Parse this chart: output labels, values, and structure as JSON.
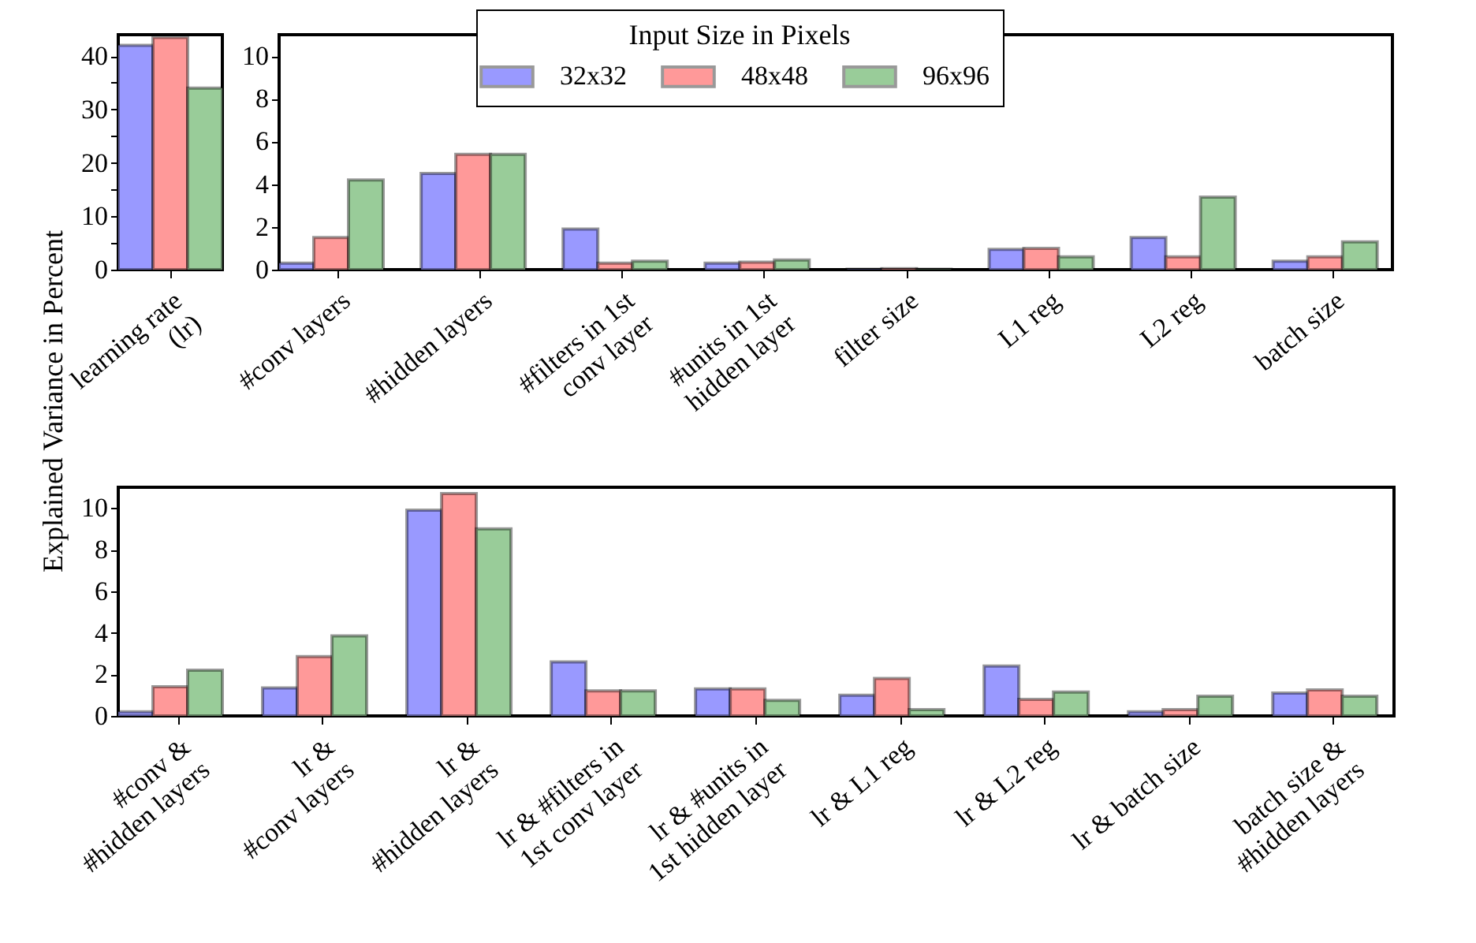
{
  "chart_data": [
    {
      "type": "bar",
      "categories": [
        "learning rate\n(lr)"
      ],
      "ylim": [
        0,
        44
      ],
      "yticks": [
        0,
        {
          "value": 5,
          "label": null
        },
        10,
        {
          "value": 15,
          "label": null
        },
        20,
        {
          "value": 25,
          "label": null
        },
        30,
        {
          "value": 35,
          "label": null
        },
        40
      ],
      "series": [
        {
          "color": "#9999ff",
          "values": [
            42
          ]
        },
        {
          "color": "#ff9999",
          "values": [
            43.5
          ]
        },
        {
          "color": "#99cc99",
          "values": [
            34
          ]
        }
      ]
    },
    {
      "type": "bar",
      "categories": [
        "#conv layers",
        "#hidden layers",
        "#filters in 1st\nconv layer",
        "#units in 1st\nhidden layer",
        "filter size",
        "L1 reg",
        "L2 reg",
        "batch size"
      ],
      "ylim": [
        0,
        11
      ],
      "yticks": [
        0,
        2,
        4,
        6,
        8,
        10
      ],
      "legend": "top",
      "legend_title": "Input Size in Pixels",
      "series": [
        {
          "name": "32x32",
          "color": "#9999ff",
          "values": [
            0.3,
            4.5,
            1.9,
            0.3,
            0.02,
            0.95,
            1.5,
            0.4
          ]
        },
        {
          "name": "48x48",
          "color": "#ff9999",
          "values": [
            1.5,
            5.4,
            0.3,
            0.35,
            0.05,
            1.0,
            0.6,
            0.6
          ]
        },
        {
          "name": "96x96",
          "color": "#99cc99",
          "values": [
            4.2,
            5.4,
            0.4,
            0.45,
            0.02,
            0.6,
            3.4,
            1.3
          ]
        }
      ]
    },
    {
      "type": "bar",
      "categories": [
        "#conv &\n#hidden layers",
        "lr &\n#conv layers",
        "lr &\n#hidden layers",
        "lr & #filters in\n1st conv layer",
        "lr & #units in\n1st hidden layer",
        "lr & L1 reg",
        "lr & L2 reg",
        "lr & batch size",
        "batch size &\n#hidden layers"
      ],
      "ylim": [
        0,
        11
      ],
      "yticks": [
        0,
        2,
        4,
        6,
        8,
        10
      ],
      "ylabel": "Explained Variance in Percent",
      "series": [
        {
          "color": "#9999ff",
          "values": [
            0.2,
            1.35,
            9.9,
            2.6,
            1.3,
            1.0,
            2.4,
            0.2,
            1.1
          ]
        },
        {
          "color": "#ff9999",
          "values": [
            1.4,
            2.85,
            10.7,
            1.2,
            1.3,
            1.8,
            0.8,
            0.3,
            1.25
          ]
        },
        {
          "color": "#99cc99",
          "values": [
            2.2,
            3.85,
            9.0,
            1.2,
            0.75,
            0.3,
            1.15,
            0.95,
            0.95
          ]
        }
      ]
    }
  ]
}
